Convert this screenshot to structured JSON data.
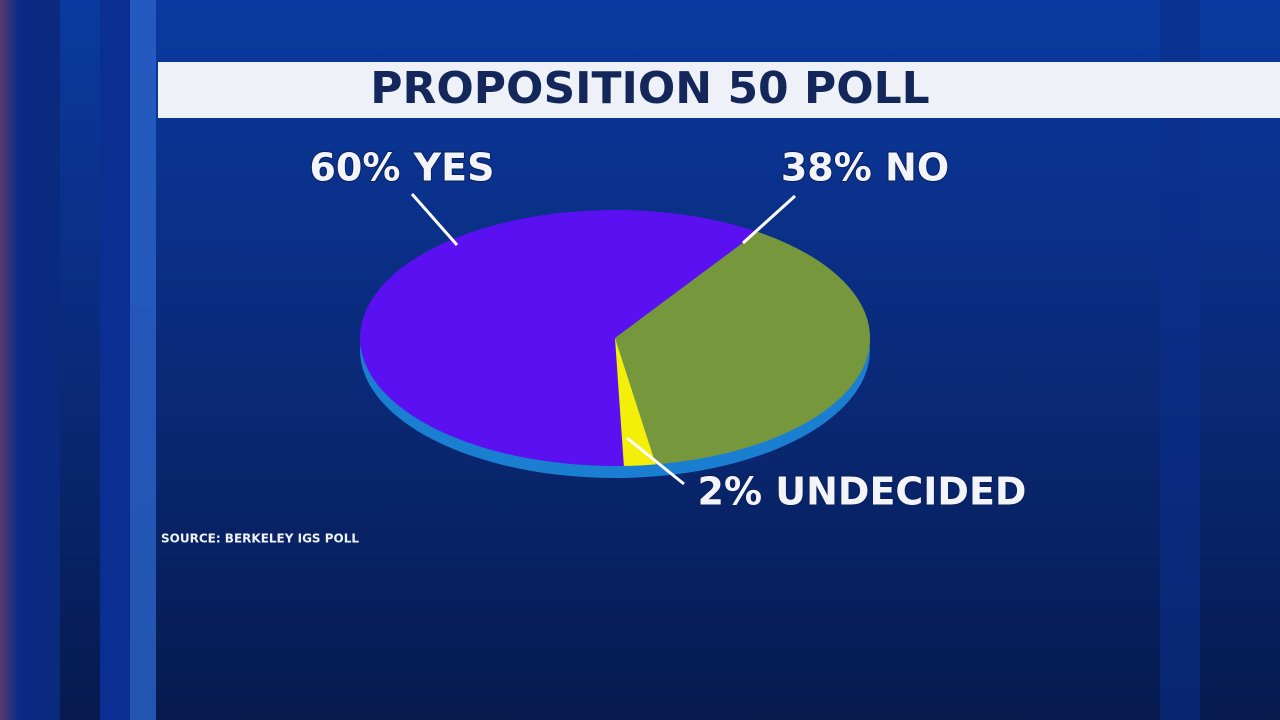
{
  "chart_data": {
    "type": "pie",
    "title": "PROPOSITION 50 POLL",
    "values": [
      60,
      38,
      2
    ],
    "value_labels": [
      "60% YES",
      "38% NO",
      "2% UNDECIDED"
    ],
    "colors": [
      "#5b10f2",
      "#77973c",
      "#f3ef08"
    ],
    "source": "SOURCE: BERKELEY IGS POLL"
  }
}
